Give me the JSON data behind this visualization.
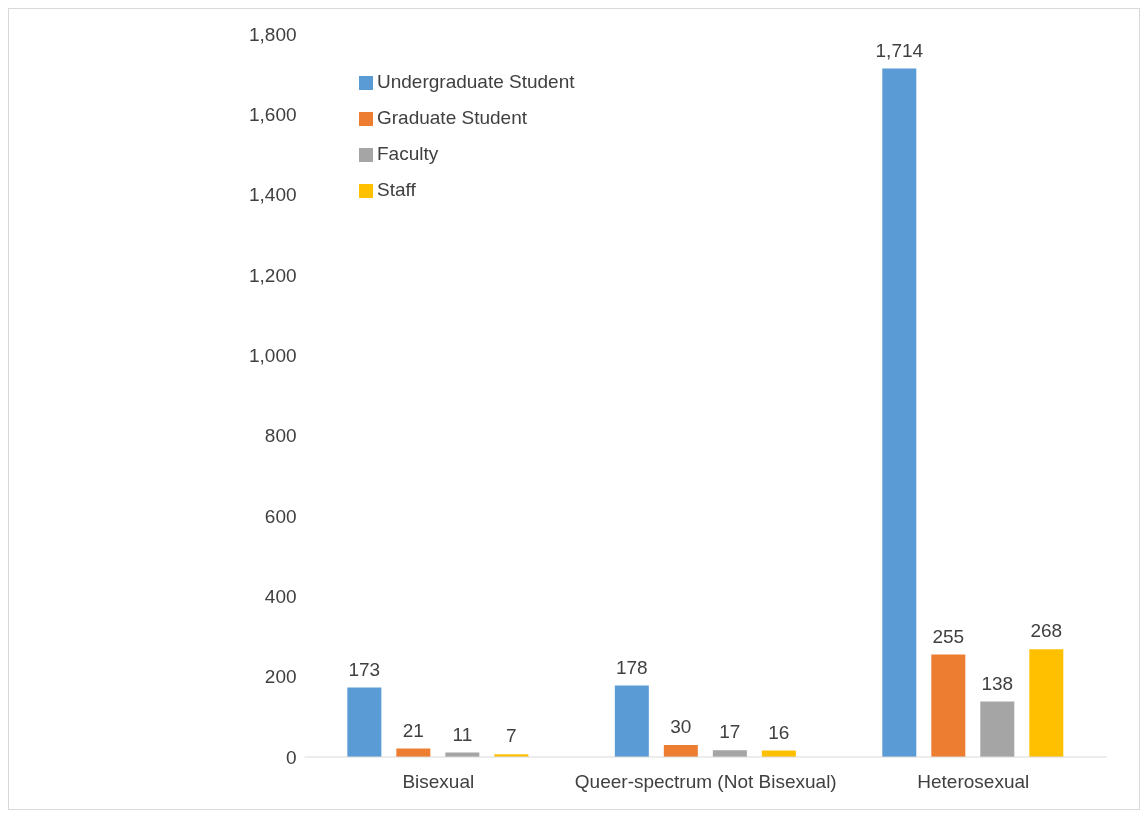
{
  "chart_data": {
    "type": "bar",
    "categories": [
      "Bisexual",
      "Queer-spectrum (Not Bisexual)",
      "Heterosexual"
    ],
    "series": [
      {
        "name": "Undergraduate Student",
        "color": "#5b9bd5",
        "values": [
          173,
          178,
          1714
        ],
        "value_labels": [
          "173",
          "178",
          "1,714"
        ]
      },
      {
        "name": "Graduate Student",
        "color": "#ed7d31",
        "values": [
          21,
          30,
          255
        ],
        "value_labels": [
          "21",
          "30",
          "255"
        ]
      },
      {
        "name": "Faculty",
        "color": "#a5a5a5",
        "values": [
          11,
          17,
          138
        ],
        "value_labels": [
          "11",
          "17",
          "138"
        ]
      },
      {
        "name": "Staff",
        "color": "#ffc000",
        "values": [
          7,
          16,
          268
        ],
        "value_labels": [
          "7",
          "16",
          "268"
        ]
      }
    ],
    "ylim": [
      0,
      1800
    ],
    "yticks": [
      0,
      200,
      400,
      600,
      800,
      {
        "value": 1000,
        "label": "1,000"
      },
      {
        "value": 1200,
        "label": "1,200"
      },
      {
        "value": 1400,
        "label": "1,400"
      },
      {
        "value": 1600,
        "label": "1,600"
      },
      {
        "value": 1800,
        "label": "1,800"
      }
    ],
    "grid": false,
    "legend": "top left"
  }
}
